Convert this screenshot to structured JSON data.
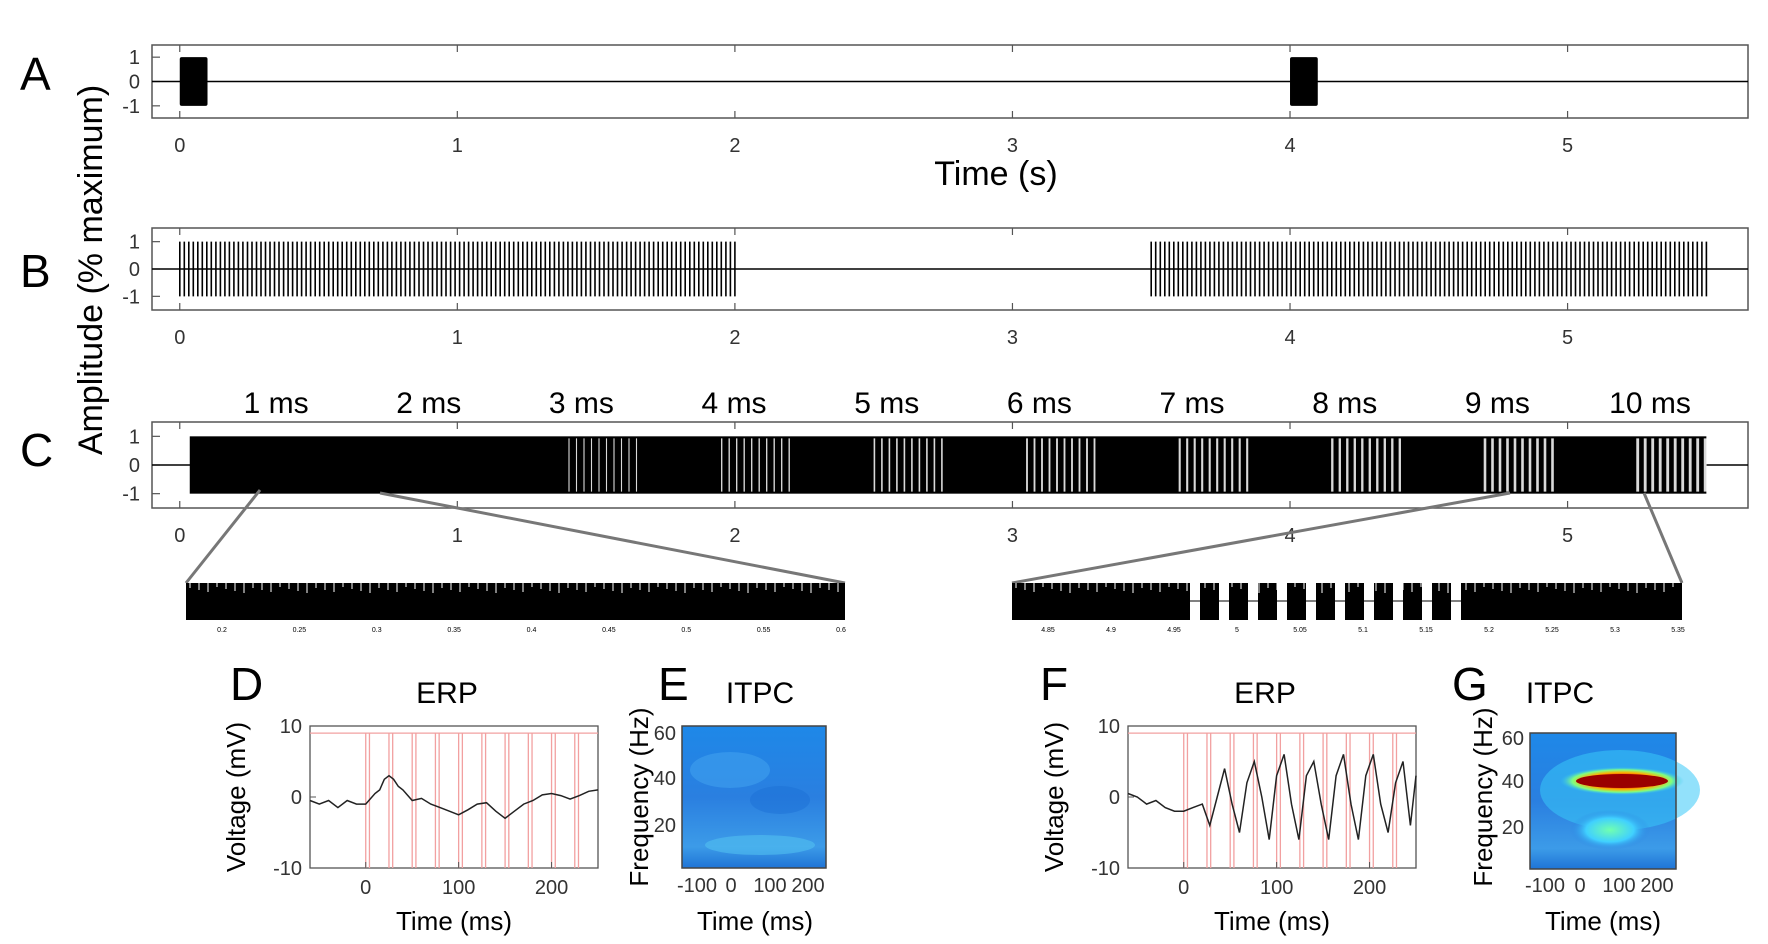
{
  "panel_labels": [
    "A",
    "B",
    "C",
    "D",
    "E",
    "F",
    "G"
  ],
  "shared_ylabel": "Amplitude (% maximum)",
  "chart_data": [
    {
      "panel": "A",
      "type": "line",
      "xlabel": "Time (s)",
      "xlim": [
        -0.1,
        5.65
      ],
      "ylim": [
        -1.5,
        1.5
      ],
      "xticks": [
        "0",
        "1",
        "2",
        "3",
        "4",
        "5"
      ],
      "yticks": [
        "1",
        "0",
        "-1"
      ],
      "bursts": [
        {
          "start": 0.0,
          "end": 0.1
        },
        {
          "start": 4.0,
          "end": 4.1
        }
      ]
    },
    {
      "panel": "B",
      "type": "line",
      "xlabel": "",
      "xlim": [
        -0.1,
        5.65
      ],
      "ylim": [
        -1.5,
        1.5
      ],
      "xticks": [
        "0",
        "1",
        "2",
        "3",
        "4",
        "5"
      ],
      "yticks": [
        "1",
        "0",
        "-1"
      ],
      "segments": [
        {
          "start": 0.0,
          "end": 2.0
        },
        {
          "start": 3.5,
          "end": 5.5
        }
      ]
    },
    {
      "panel": "C",
      "type": "line",
      "xlabel": "",
      "xlim": [
        -0.1,
        5.65
      ],
      "ylim": [
        -1.5,
        1.5
      ],
      "xticks": [
        "0",
        "1",
        "2",
        "3",
        "4",
        "5"
      ],
      "yticks": [
        "1",
        "0",
        "-1"
      ],
      "signal_range": [
        0.0,
        5.5
      ],
      "gap_labels": [
        "1 ms",
        "2 ms",
        "3 ms",
        "4 ms",
        "5 ms",
        "6 ms",
        "7 ms",
        "8 ms",
        "9 ms",
        "10 ms"
      ]
    },
    {
      "panel": "C-zoom-left",
      "type": "line",
      "xticks": [
        "0.2",
        "0.25",
        "0.3",
        "0.35",
        "0.4",
        "0.45",
        "0.5",
        "0.55",
        "0.6"
      ]
    },
    {
      "panel": "C-zoom-right",
      "type": "line",
      "xticks": [
        "4.85",
        "4.9",
        "4.95",
        "5",
        "5.05",
        "5.1",
        "5.15",
        "5.2",
        "5.25",
        "5.3",
        "5.35"
      ]
    },
    {
      "panel": "D",
      "type": "line",
      "title": "ERP",
      "xlabel": "Time (ms)",
      "ylabel": "Voltage (mV)",
      "xlim": [
        -60,
        250
      ],
      "ylim": [
        -10,
        10
      ],
      "xticks": [
        "0",
        "100",
        "200"
      ],
      "yticks": [
        "10",
        "0",
        "-10"
      ],
      "stim_onsets_ms": [
        0,
        25,
        50,
        75,
        100,
        125,
        150,
        175,
        200,
        225
      ],
      "erp_x": [
        -60,
        -50,
        -40,
        -30,
        -20,
        -10,
        0,
        10,
        15,
        20,
        25,
        30,
        35,
        40,
        50,
        60,
        70,
        80,
        90,
        100,
        110,
        120,
        130,
        140,
        150,
        160,
        170,
        180,
        190,
        200,
        210,
        220,
        230,
        240,
        250
      ],
      "erp_y": [
        -0.5,
        -1.0,
        -0.5,
        -1.5,
        -0.5,
        -1.0,
        -1.0,
        0.5,
        1.0,
        2.5,
        3.0,
        2.5,
        1.5,
        1.0,
        -0.5,
        -0.2,
        -1.0,
        -1.5,
        -2.0,
        -2.5,
        -1.8,
        -1.0,
        -0.8,
        -2.0,
        -3.0,
        -2.0,
        -1.0,
        -0.5,
        0.3,
        0.5,
        0.2,
        -0.3,
        0.2,
        0.8,
        1.0
      ]
    },
    {
      "panel": "E",
      "type": "heatmap",
      "title": "ITPC",
      "xlabel": "Time (ms)",
      "ylabel": "Frequency (Hz)",
      "xticks": [
        "-100",
        "0",
        "100",
        "200"
      ],
      "yticks": [
        "60",
        "40",
        "20"
      ]
    },
    {
      "panel": "F",
      "type": "line",
      "title": "ERP",
      "xlabel": "Time (ms)",
      "ylabel": "Voltage (mV)",
      "xlim": [
        -60,
        250
      ],
      "ylim": [
        -10,
        10
      ],
      "xticks": [
        "0",
        "100",
        "200"
      ],
      "yticks": [
        "10",
        "0",
        "-10"
      ],
      "stim_onsets_ms": [
        0,
        25,
        50,
        75,
        100,
        125,
        150,
        175,
        200,
        225
      ],
      "erp_x": [
        -60,
        -50,
        -40,
        -30,
        -20,
        -10,
        0,
        10,
        20,
        28,
        36,
        44,
        52,
        60,
        68,
        76,
        84,
        92,
        100,
        108,
        116,
        124,
        132,
        140,
        148,
        156,
        164,
        172,
        180,
        188,
        196,
        204,
        212,
        220,
        228,
        236,
        244,
        250
      ],
      "erp_y": [
        0.5,
        0.0,
        -1.0,
        -0.5,
        -1.5,
        -2.0,
        -2.0,
        -1.5,
        -1.0,
        -4.0,
        0.0,
        4.0,
        -1.0,
        -5.0,
        2.0,
        5.0,
        0.0,
        -6.0,
        3.0,
        6.0,
        -1.0,
        -6.0,
        3.0,
        5.0,
        -1.0,
        -6.0,
        3.0,
        6.0,
        -1.0,
        -6.0,
        3.0,
        6.0,
        -1.0,
        -5.0,
        2.0,
        5.0,
        -4.0,
        3.0
      ]
    },
    {
      "panel": "G",
      "type": "heatmap",
      "title": "ITPC",
      "xlabel": "Time (ms)",
      "ylabel": "Frequency (Hz)",
      "xticks": [
        "-100",
        "0",
        "100",
        "200"
      ],
      "yticks": [
        "60",
        "40",
        "20"
      ],
      "peak": {
        "frequency_hz": 40,
        "time_ms": [
          30,
          250
        ]
      }
    }
  ]
}
